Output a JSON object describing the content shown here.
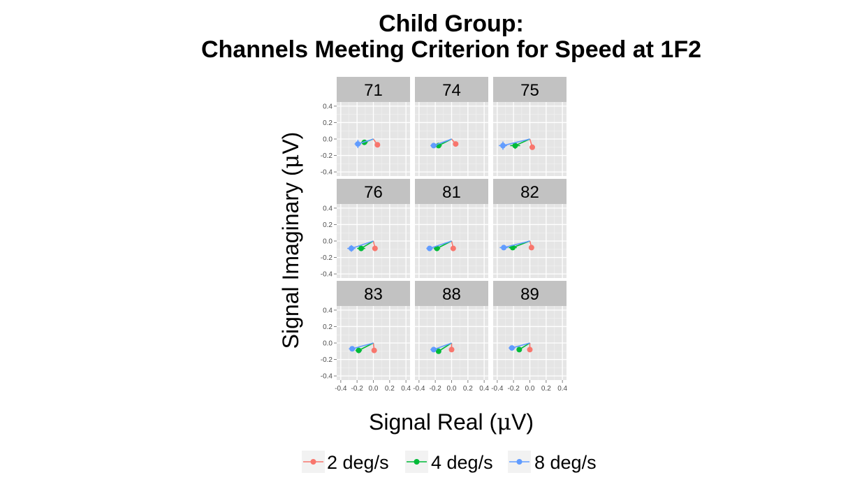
{
  "chart_data": {
    "type": "scatter",
    "title_lines": [
      "Child Group:",
      "Channels Meeting Criterion for Speed at 1F2"
    ],
    "xlabel_prefix": "Signal Real (",
    "ylabel_prefix": "Signal Imaginary (",
    "unit_symbol": "μ",
    "unit_suffix": "V)",
    "xlim": [
      -0.45,
      0.45
    ],
    "ylim": [
      -0.45,
      0.45
    ],
    "x_ticks": [
      -0.4,
      -0.2,
      0.0,
      0.2,
      0.4
    ],
    "y_ticks": [
      -0.4,
      -0.2,
      0.0,
      0.2,
      0.4
    ],
    "x_tick_labels": [
      "-0.4",
      "-0.2",
      "0.0",
      "0.2",
      "0.4"
    ],
    "y_tick_labels": [
      "-0.4",
      "-0.2",
      "0.0",
      "0.2",
      "0.4"
    ],
    "grid": true,
    "vectors_from_origin": true,
    "legend_position": "bottom",
    "series": [
      {
        "name": "2 deg/s",
        "color": "#F8766D"
      },
      {
        "name": "4 deg/s",
        "color": "#00BA38"
      },
      {
        "name": "8 deg/s",
        "color": "#619CFF"
      }
    ],
    "panels": [
      {
        "label": "71",
        "points": [
          {
            "series": "2 deg/s",
            "x": 0.05,
            "y": -0.07,
            "xerr": 0.02,
            "yerr": 0.01
          },
          {
            "series": "4 deg/s",
            "x": -0.11,
            "y": -0.04,
            "xerr": 0.04,
            "yerr": 0.02
          },
          {
            "series": "8 deg/s",
            "x": -0.19,
            "y": -0.06,
            "xerr": 0.04,
            "yerr": 0.05
          }
        ]
      },
      {
        "label": "74",
        "points": [
          {
            "series": "2 deg/s",
            "x": 0.05,
            "y": -0.06,
            "xerr": 0.01,
            "yerr": 0.01
          },
          {
            "series": "4 deg/s",
            "x": -0.16,
            "y": -0.08,
            "xerr": 0.04,
            "yerr": 0.02
          },
          {
            "series": "8 deg/s",
            "x": -0.22,
            "y": -0.08,
            "xerr": 0.04,
            "yerr": 0.02
          }
        ]
      },
      {
        "label": "75",
        "points": [
          {
            "series": "2 deg/s",
            "x": 0.03,
            "y": -0.1,
            "xerr": 0.02,
            "yerr": 0.03
          },
          {
            "series": "4 deg/s",
            "x": -0.18,
            "y": -0.08,
            "xerr": 0.06,
            "yerr": 0.04
          },
          {
            "series": "8 deg/s",
            "x": -0.33,
            "y": -0.08,
            "xerr": 0.05,
            "yerr": 0.05
          }
        ]
      },
      {
        "label": "76",
        "points": [
          {
            "series": "2 deg/s",
            "x": 0.02,
            "y": -0.09,
            "xerr": 0.01,
            "yerr": 0.02
          },
          {
            "series": "4 deg/s",
            "x": -0.15,
            "y": -0.09,
            "xerr": 0.05,
            "yerr": 0.03
          },
          {
            "series": "8 deg/s",
            "x": -0.27,
            "y": -0.09,
            "xerr": 0.05,
            "yerr": 0.04
          }
        ]
      },
      {
        "label": "81",
        "points": [
          {
            "series": "2 deg/s",
            "x": 0.02,
            "y": -0.09,
            "xerr": 0.01,
            "yerr": 0.01
          },
          {
            "series": "4 deg/s",
            "x": -0.18,
            "y": -0.09,
            "xerr": 0.04,
            "yerr": 0.02
          },
          {
            "series": "8 deg/s",
            "x": -0.27,
            "y": -0.09,
            "xerr": 0.04,
            "yerr": 0.03
          }
        ]
      },
      {
        "label": "82",
        "points": [
          {
            "series": "2 deg/s",
            "x": 0.02,
            "y": -0.08,
            "xerr": 0.01,
            "yerr": 0.02
          },
          {
            "series": "4 deg/s",
            "x": -0.21,
            "y": -0.08,
            "xerr": 0.05,
            "yerr": 0.03
          },
          {
            "series": "8 deg/s",
            "x": -0.32,
            "y": -0.08,
            "xerr": 0.05,
            "yerr": 0.03
          }
        ]
      },
      {
        "label": "83",
        "points": [
          {
            "series": "2 deg/s",
            "x": 0.01,
            "y": -0.09,
            "xerr": 0.01,
            "yerr": 0.01
          },
          {
            "series": "4 deg/s",
            "x": -0.18,
            "y": -0.09,
            "xerr": 0.04,
            "yerr": 0.03
          },
          {
            "series": "8 deg/s",
            "x": -0.26,
            "y": -0.07,
            "xerr": 0.04,
            "yerr": 0.03
          }
        ]
      },
      {
        "label": "88",
        "points": [
          {
            "series": "2 deg/s",
            "x": 0.0,
            "y": -0.08,
            "xerr": 0.01,
            "yerr": 0.01
          },
          {
            "series": "4 deg/s",
            "x": -0.16,
            "y": -0.1,
            "xerr": 0.03,
            "yerr": 0.02
          },
          {
            "series": "8 deg/s",
            "x": -0.22,
            "y": -0.08,
            "xerr": 0.04,
            "yerr": 0.02
          }
        ]
      },
      {
        "label": "89",
        "points": [
          {
            "series": "2 deg/s",
            "x": 0.0,
            "y": -0.08,
            "xerr": 0.01,
            "yerr": 0.01
          },
          {
            "series": "4 deg/s",
            "x": -0.13,
            "y": -0.08,
            "xerr": 0.03,
            "yerr": 0.02
          },
          {
            "series": "8 deg/s",
            "x": -0.22,
            "y": -0.06,
            "xerr": 0.04,
            "yerr": 0.02
          }
        ]
      }
    ]
  }
}
